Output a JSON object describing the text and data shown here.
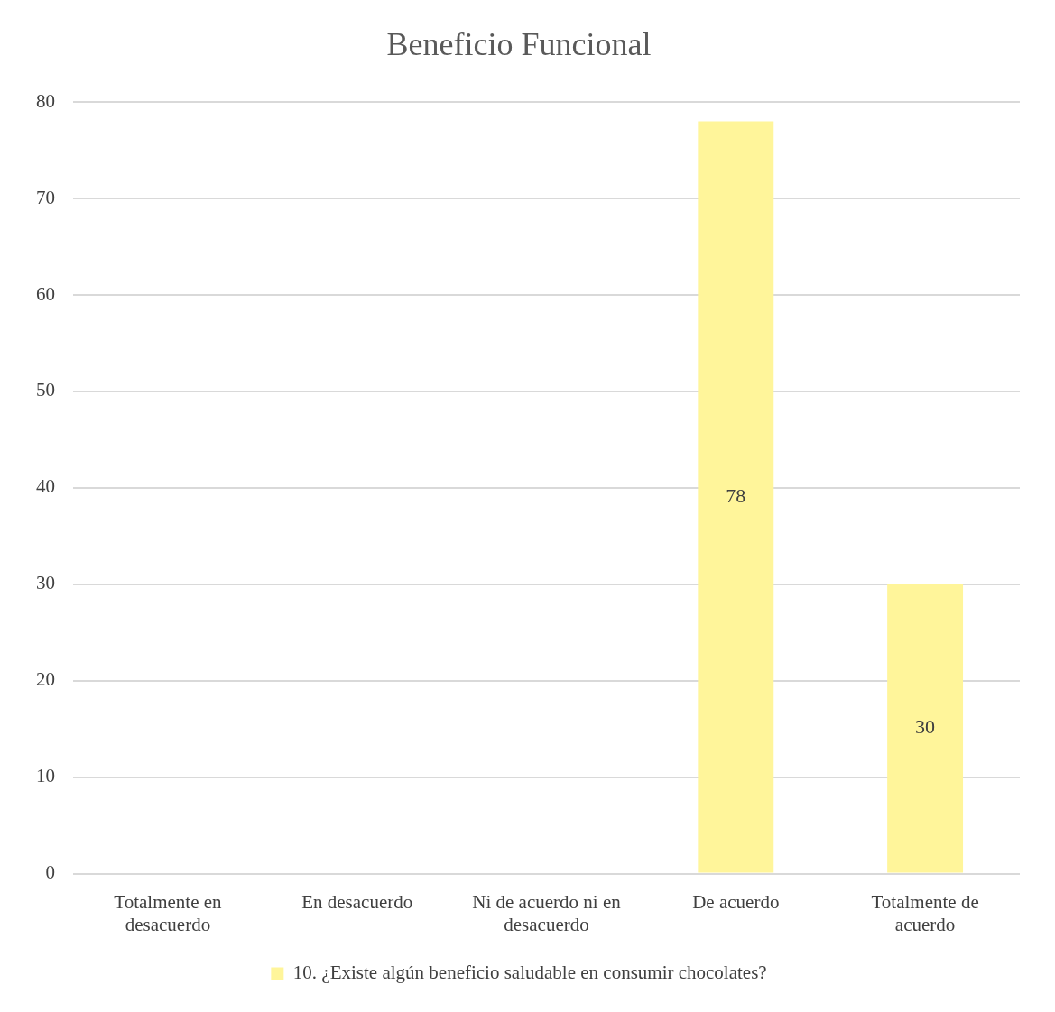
{
  "chart_data": {
    "type": "bar",
    "title": "Beneficio Funcional",
    "categories": [
      "Totalmente en desacuerdo",
      "En desacuerdo",
      "Ni de acuerdo ni en desacuerdo",
      "De acuerdo",
      "Totalmente de acuerdo"
    ],
    "series": [
      {
        "name": "10. ¿Existe algún beneficio saludable en consumir chocolates?",
        "color": "#fff59a",
        "values": [
          0,
          0,
          0,
          78,
          30
        ],
        "value_labels": [
          null,
          null,
          null,
          "78",
          "30"
        ]
      }
    ],
    "ylim": [
      0,
      80
    ],
    "yticks": [
      0,
      10,
      20,
      30,
      40,
      50,
      60,
      70,
      80
    ],
    "grid": "y",
    "legend": "bottom"
  }
}
